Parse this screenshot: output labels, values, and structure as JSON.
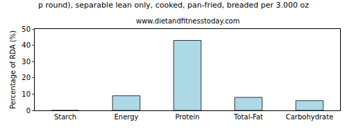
{
  "chart_data": {
    "type": "bar",
    "title": "p round), separable lean only, cooked, pan-fried, breaded per 3.000 oz",
    "subtitle": "www.dietandfitnesstoday.com",
    "y_label": "Percentage of RDA (%)",
    "categories": [
      "Starch",
      "Energy",
      "Protein",
      "Total-Fat",
      "Carbohydrate"
    ],
    "values": [
      0,
      9,
      43,
      8,
      6
    ],
    "color": "#add8e6",
    "ylim": [
      0,
      50
    ],
    "yticks": [
      0,
      10,
      20,
      30,
      40,
      50
    ],
    "grid": false
  }
}
